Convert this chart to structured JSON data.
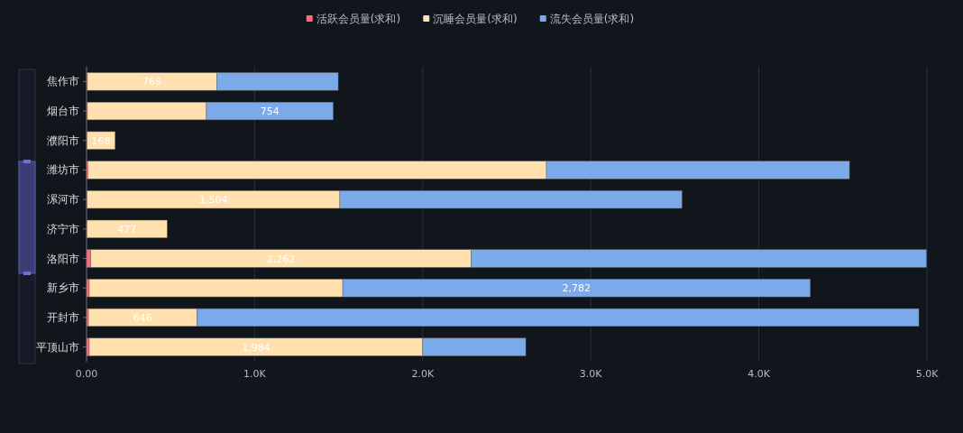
{
  "chart_data": {
    "type": "bar",
    "orientation": "horizontal",
    "stacked": true,
    "legend": "top",
    "grid": "x",
    "categories": [
      "焦作市",
      "烟台市",
      "濮阳市",
      "潍坊市",
      "漯河市",
      "济宁市",
      "洛阳市",
      "新乡市",
      "开封市",
      "平顶山市"
    ],
    "series": [
      {
        "name": "活跃会员量(求和)",
        "color": "#fc6b7f",
        "values": [
          5,
          5,
          2,
          7,
          3,
          2,
          25,
          16,
          11,
          16
        ]
      },
      {
        "name": "沉睡会员量(求和)",
        "color": "#ffe0ae",
        "values": [
          769,
          708,
          168,
          2729,
          1504,
          477,
          2262,
          1508,
          646,
          1984
        ],
        "value_labels": [
          "769",
          null,
          "168",
          null,
          "1,504",
          "477",
          "2,262",
          null,
          "646",
          "1,984"
        ]
      },
      {
        "name": "流失会员量(求和)",
        "color": "#7aaaea",
        "values": [
          723,
          754,
          null,
          1803,
          2035,
          null,
          2710,
          2782,
          4295,
          613
        ],
        "value_labels": [
          null,
          "754",
          null,
          null,
          null,
          null,
          null,
          "2,782",
          null,
          null
        ]
      }
    ],
    "xlim": [
      0,
      5000
    ],
    "xticks": [
      {
        "value": 0,
        "label": "0.00"
      },
      {
        "value": 1000,
        "label": "1.0K"
      },
      {
        "value": 2000,
        "label": "2.0K"
      },
      {
        "value": 3000,
        "label": "3.0K"
      },
      {
        "value": 4000,
        "label": "4.0K"
      },
      {
        "value": 5000,
        "label": "5.0K"
      }
    ]
  }
}
